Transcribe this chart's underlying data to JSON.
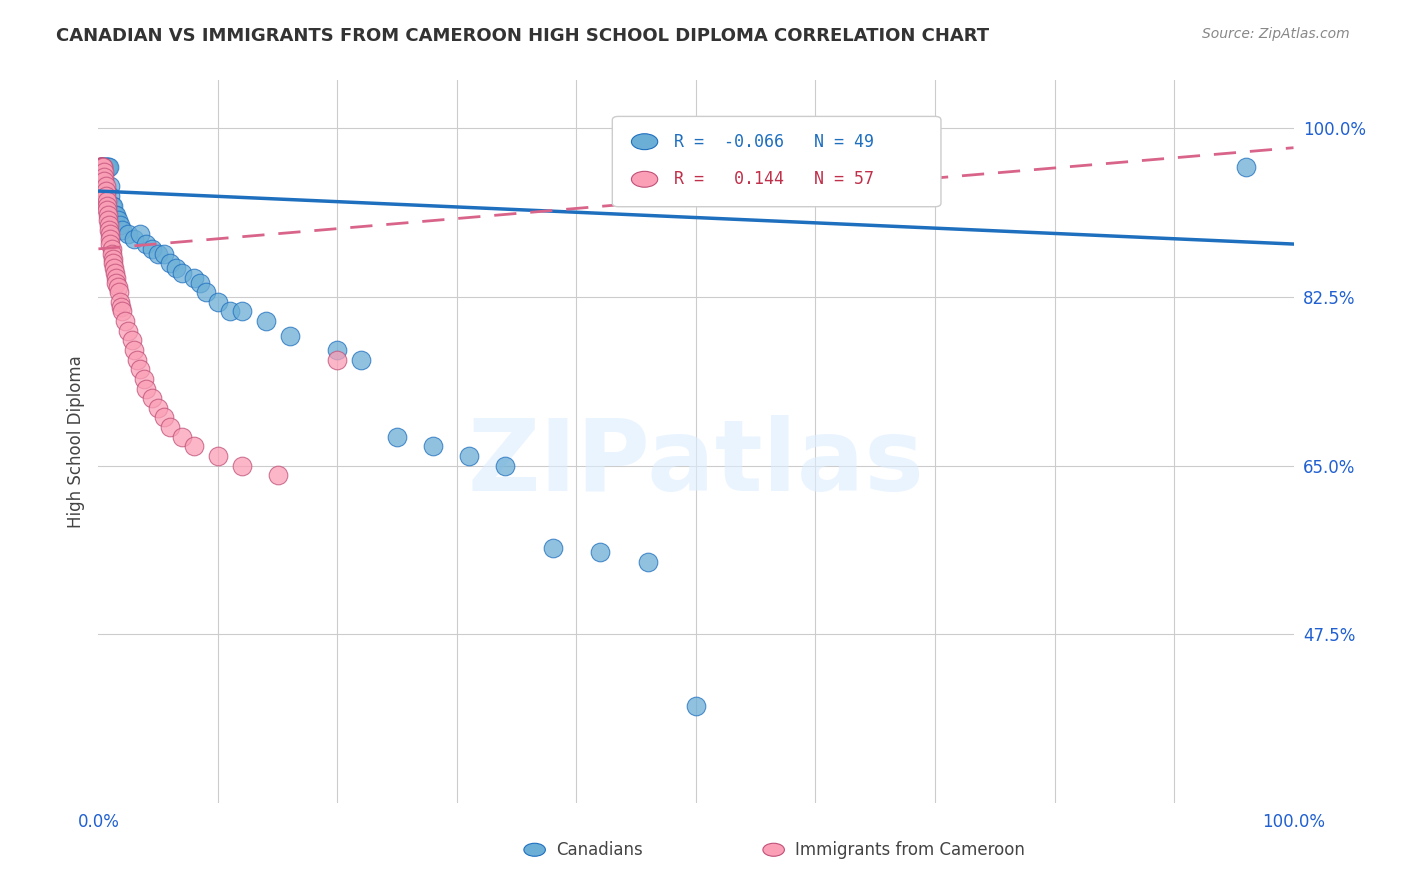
{
  "title": "CANADIAN VS IMMIGRANTS FROM CAMEROON HIGH SCHOOL DIPLOMA CORRELATION CHART",
  "source": "Source: ZipAtlas.com",
  "ylabel": "High School Diploma",
  "yticks": [
    "100.0%",
    "82.5%",
    "65.0%",
    "47.5%"
  ],
  "ytick_vals": [
    1.0,
    0.825,
    0.65,
    0.475
  ],
  "legend_canadian": "Canadians",
  "legend_immigrant": "Immigrants from Cameroon",
  "r_canadian": -0.066,
  "n_canadian": 49,
  "r_immigrant": 0.144,
  "n_immigrant": 57,
  "color_canadian": "#6baed6",
  "color_immigrant": "#fa9fb5",
  "trendline_canadian": "#1f6fbf",
  "trendline_immigrant": "#d9648a",
  "watermark": "ZIPatlas",
  "can_x": [
    0.002,
    0.003,
    0.003,
    0.004,
    0.005,
    0.006,
    0.006,
    0.007,
    0.008,
    0.009,
    0.01,
    0.01,
    0.011,
    0.012,
    0.013,
    0.014,
    0.015,
    0.016,
    0.018,
    0.02,
    0.025,
    0.03,
    0.035,
    0.04,
    0.045,
    0.05,
    0.055,
    0.06,
    0.065,
    0.07,
    0.08,
    0.085,
    0.09,
    0.1,
    0.11,
    0.12,
    0.14,
    0.16,
    0.2,
    0.22,
    0.25,
    0.28,
    0.31,
    0.34,
    0.38,
    0.42,
    0.46,
    0.5,
    0.96
  ],
  "can_y": [
    0.96,
    0.96,
    0.955,
    0.96,
    0.96,
    0.96,
    0.96,
    0.96,
    0.96,
    0.96,
    0.94,
    0.93,
    0.92,
    0.92,
    0.91,
    0.91,
    0.91,
    0.905,
    0.9,
    0.895,
    0.89,
    0.885,
    0.89,
    0.88,
    0.875,
    0.87,
    0.87,
    0.86,
    0.855,
    0.85,
    0.845,
    0.84,
    0.83,
    0.82,
    0.81,
    0.81,
    0.8,
    0.785,
    0.77,
    0.76,
    0.68,
    0.67,
    0.66,
    0.65,
    0.565,
    0.56,
    0.55,
    0.4,
    0.96
  ],
  "imm_x": [
    0.001,
    0.001,
    0.002,
    0.002,
    0.002,
    0.003,
    0.003,
    0.003,
    0.004,
    0.004,
    0.005,
    0.005,
    0.005,
    0.006,
    0.006,
    0.006,
    0.007,
    0.007,
    0.007,
    0.008,
    0.008,
    0.009,
    0.009,
    0.01,
    0.01,
    0.01,
    0.011,
    0.011,
    0.012,
    0.012,
    0.013,
    0.014,
    0.015,
    0.015,
    0.016,
    0.017,
    0.018,
    0.019,
    0.02,
    0.022,
    0.025,
    0.028,
    0.03,
    0.032,
    0.035,
    0.038,
    0.04,
    0.045,
    0.05,
    0.055,
    0.06,
    0.07,
    0.08,
    0.1,
    0.12,
    0.15,
    0.2
  ],
  "imm_y": [
    0.96,
    0.96,
    0.96,
    0.96,
    0.96,
    0.96,
    0.96,
    0.96,
    0.96,
    0.96,
    0.955,
    0.95,
    0.945,
    0.94,
    0.935,
    0.93,
    0.925,
    0.92,
    0.915,
    0.91,
    0.905,
    0.9,
    0.895,
    0.89,
    0.885,
    0.88,
    0.875,
    0.87,
    0.865,
    0.86,
    0.855,
    0.85,
    0.845,
    0.84,
    0.835,
    0.83,
    0.82,
    0.815,
    0.81,
    0.8,
    0.79,
    0.78,
    0.77,
    0.76,
    0.75,
    0.74,
    0.73,
    0.72,
    0.71,
    0.7,
    0.69,
    0.68,
    0.67,
    0.66,
    0.65,
    0.64,
    0.76
  ],
  "can_trend_x": [
    0.0,
    1.0
  ],
  "can_trend_y": [
    0.935,
    0.88
  ],
  "imm_trend_x": [
    0.0,
    1.0
  ],
  "imm_trend_y": [
    0.875,
    0.98
  ],
  "xlim": [
    0.0,
    1.0
  ],
  "ylim": [
    0.3,
    1.05
  ],
  "xticks": [
    0.0,
    0.1,
    0.2,
    0.3,
    0.4,
    0.5,
    0.6,
    0.7,
    0.8,
    0.9,
    1.0
  ],
  "xticklabels": [
    "0.0%",
    "",
    "",
    "",
    "",
    "",
    "",
    "",
    "",
    "",
    "100.0%"
  ],
  "grid_x": [
    0.1,
    0.2,
    0.3,
    0.4,
    0.5,
    0.6,
    0.7,
    0.8,
    0.9
  ]
}
